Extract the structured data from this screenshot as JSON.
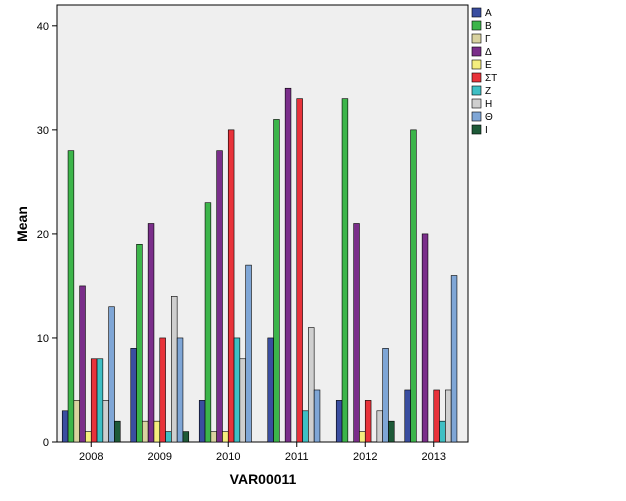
{
  "chart_data": {
    "type": "bar",
    "xlabel": "VAR00011",
    "ylabel": "Mean",
    "ylim": [
      0,
      42
    ],
    "yticks": [
      0,
      10,
      20,
      30,
      40
    ],
    "grid": false,
    "legend_position": "right",
    "categories": [
      "2008",
      "2009",
      "2010",
      "2011",
      "2012",
      "2013"
    ],
    "series": [
      {
        "name": "Α",
        "color": "#3a4ea0",
        "values": [
          3,
          9,
          4,
          10,
          4,
          5
        ]
      },
      {
        "name": "Β",
        "color": "#3cb54a",
        "values": [
          28,
          19,
          23,
          31,
          33,
          30
        ]
      },
      {
        "name": "Γ",
        "color": "#d9d3a0",
        "values": [
          4,
          2,
          1,
          0,
          0,
          0
        ]
      },
      {
        "name": "Δ",
        "color": "#7a2e8a",
        "values": [
          15,
          21,
          28,
          34,
          21,
          20
        ]
      },
      {
        "name": "Ε",
        "color": "#f5ee7e",
        "values": [
          1,
          2,
          1,
          0,
          1,
          0
        ]
      },
      {
        "name": "ΣΤ",
        "color": "#e8323a",
        "values": [
          8,
          10,
          30,
          33,
          4,
          5
        ]
      },
      {
        "name": "Ζ",
        "color": "#3fbfc4",
        "values": [
          8,
          1,
          10,
          3,
          0,
          2
        ]
      },
      {
        "name": "Η",
        "color": "#cfcfcf",
        "values": [
          4,
          14,
          8,
          11,
          3,
          5
        ]
      },
      {
        "name": "Θ",
        "color": "#7fa6d6",
        "values": [
          13,
          10,
          17,
          5,
          9,
          16
        ]
      },
      {
        "name": "Ι",
        "color": "#1e5a38",
        "values": [
          2,
          1,
          0,
          0,
          2,
          0
        ]
      }
    ]
  }
}
